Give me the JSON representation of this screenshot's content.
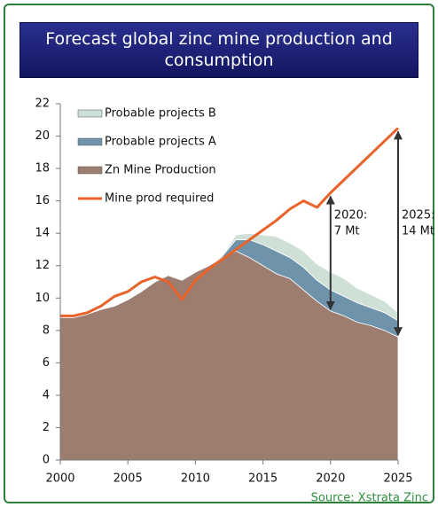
{
  "chart_data": {
    "type": "stacked-area-line",
    "title": "Forecast global zinc mine production and consumption",
    "source": "Source: Xstrata Zinc",
    "x": [
      2000,
      2001,
      2002,
      2003,
      2004,
      2005,
      2006,
      2007,
      2008,
      2009,
      2010,
      2011,
      2012,
      2013,
      2014,
      2015,
      2016,
      2017,
      2018,
      2019,
      2020,
      2021,
      2022,
      2023,
      2024,
      2025
    ],
    "xlim": [
      2000,
      2025
    ],
    "xticks": [
      2000,
      2005,
      2010,
      2015,
      2020,
      2025
    ],
    "ylim": [
      0,
      22
    ],
    "yticks": [
      0,
      2,
      4,
      6,
      8,
      10,
      12,
      14,
      16,
      18,
      20,
      22
    ],
    "legend": "upper left",
    "series": [
      {
        "name": "Zn Mine Production",
        "kind": "area",
        "color": "#9c7d70",
        "values": [
          8.8,
          8.8,
          9.0,
          9.3,
          9.5,
          9.9,
          10.4,
          11.0,
          11.4,
          11.1,
          11.6,
          12.0,
          12.5,
          12.9,
          12.5,
          12.0,
          11.5,
          11.2,
          10.5,
          9.8,
          9.2,
          8.9,
          8.5,
          8.3,
          8.0,
          7.6
        ]
      },
      {
        "name": "Probable projects A",
        "kind": "area",
        "color": "#6f93ab",
        "values": [
          0,
          0,
          0,
          0,
          0,
          0,
          0,
          0,
          0,
          0,
          0,
          0,
          0.1,
          0.7,
          1.1,
          1.3,
          1.4,
          1.3,
          1.4,
          1.3,
          1.3,
          1.2,
          1.2,
          1.1,
          1.1,
          1.0
        ]
      },
      {
        "name": "Probable projects B",
        "kind": "area",
        "color": "#cfe0d6",
        "values": [
          0,
          0,
          0,
          0,
          0,
          0,
          0,
          0,
          0,
          0,
          0,
          0,
          0,
          0.3,
          0.4,
          0.6,
          0.9,
          0.9,
          1.0,
          1.0,
          1.1,
          1.1,
          0.9,
          0.8,
          0.7,
          0.5
        ]
      },
      {
        "name": "Mine prod required",
        "kind": "line",
        "color": "#e8622a",
        "values": [
          8.9,
          8.9,
          9.1,
          9.5,
          10.1,
          10.4,
          11.0,
          11.3,
          11.0,
          9.9,
          11.1,
          11.8,
          12.4,
          13.0,
          13.6,
          14.2,
          14.8,
          15.5,
          16.0,
          15.6,
          16.5,
          17.3,
          18.1,
          18.9,
          19.7,
          20.5
        ]
      }
    ],
    "annotations": [
      {
        "x": 2020,
        "lines": [
          "2020:",
          "7 Mt"
        ]
      },
      {
        "x": 2025,
        "lines": [
          "2025:",
          "14 Mt"
        ]
      }
    ]
  }
}
